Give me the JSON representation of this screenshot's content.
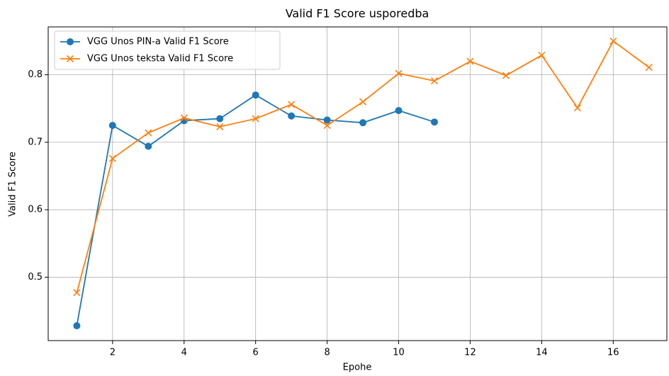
{
  "chart_data": {
    "type": "line",
    "title": "Valid F1 Score usporedba",
    "xlabel": "Epohe",
    "ylabel": "Valid F1 Score",
    "xlim": [
      0.2,
      17.5
    ],
    "xticks": [
      2,
      4,
      6,
      8,
      10,
      12,
      14,
      16
    ],
    "ylim": [
      0.406,
      0.871
    ],
    "yticks": [
      {
        "value": 0.5,
        "label": "0.5"
      },
      {
        "value": 0.6,
        "label": "0.6"
      },
      {
        "value": 0.7,
        "label": "0.7"
      },
      {
        "value": 0.8,
        "label": "0.8"
      }
    ],
    "grid": true,
    "legend": "upper left",
    "series": [
      {
        "name": "VGG Unos PIN-a Valid F1 Score",
        "color": "#1f77b4",
        "marker": "circle",
        "x": [
          1,
          2,
          3,
          4,
          5,
          6,
          7,
          8,
          9,
          10,
          11
        ],
        "values": [
          0.428,
          0.725,
          0.694,
          0.732,
          0.735,
          0.77,
          0.739,
          0.733,
          0.729,
          0.747,
          0.73
        ]
      },
      {
        "name": "VGG Unos teksta Valid F1 Score",
        "color": "#ff7f0e",
        "marker": "x",
        "x": [
          1,
          2,
          3,
          4,
          5,
          6,
          7,
          8,
          9,
          10,
          11,
          12,
          13,
          14,
          15,
          16,
          17
        ],
        "values": [
          0.477,
          0.676,
          0.714,
          0.736,
          0.723,
          0.735,
          0.756,
          0.725,
          0.76,
          0.802,
          0.791,
          0.82,
          0.799,
          0.829,
          0.751,
          0.85,
          0.811
        ]
      }
    ]
  }
}
